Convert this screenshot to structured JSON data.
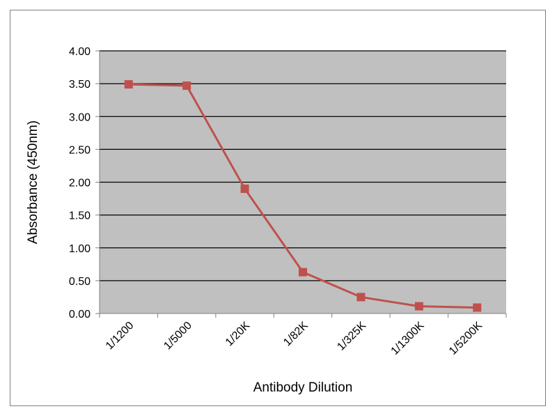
{
  "chart_data": {
    "type": "line",
    "title": "",
    "xlabel": "Antibody Dilution",
    "ylabel": "Absorbance (450nm)",
    "categories": [
      "1/1200",
      "1/5000",
      "1/20K",
      "1/82K",
      "1/325K",
      "1/1300K",
      "1/5200K"
    ],
    "series": [
      {
        "name": "",
        "values": [
          3.49,
          3.47,
          1.9,
          0.63,
          0.25,
          0.11,
          0.09
        ]
      }
    ],
    "ylim": [
      0,
      4
    ],
    "yticks": [
      "0.00",
      "0.50",
      "1.00",
      "1.50",
      "2.00",
      "2.50",
      "3.00",
      "3.50",
      "4.00"
    ],
    "grid": "horizontal",
    "legend": "none",
    "colors": {
      "plot_background": "#c0c0c0",
      "series_line": "#c0504d",
      "gridline": "#000000"
    }
  }
}
